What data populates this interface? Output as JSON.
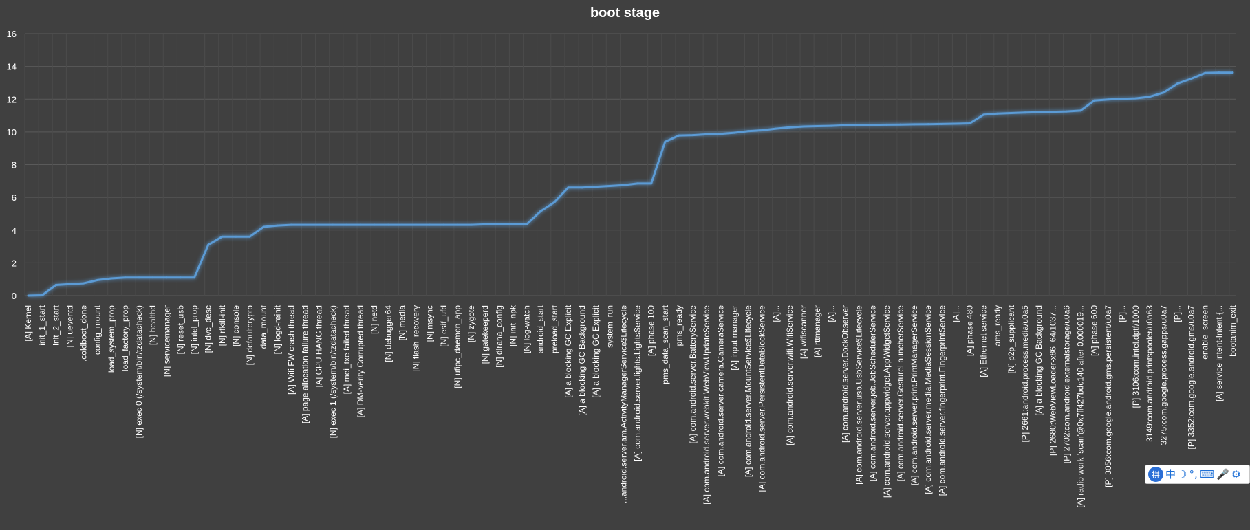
{
  "chart_data": {
    "type": "line",
    "title": "boot stage",
    "xlabel": "",
    "ylabel": "",
    "ylim": [
      0,
      16
    ],
    "yticks": [
      "0",
      "2",
      "4",
      "6",
      "8",
      "10",
      "12",
      "14",
      "16"
    ],
    "grid": true,
    "legend": "none",
    "colors": {
      "background": "#404040",
      "line": "#5b9bd5",
      "grid": "#5a5a5a",
      "text": "#ffffff"
    },
    "categories": [
      "[A] Kernel",
      "init_1_start",
      "init_2_start",
      "[N] ueventd",
      ".coldboot_done",
      "config_mount",
      "load_system_prop",
      "load_factory_prop",
      "[N] exec 0 (/system/bin/tzdatacheck)",
      "[N] healthd",
      "[N] servicemanager",
      "[N] reset_usb",
      "[N] intel_prop",
      "[N] dvc_desc",
      "[N] rfkill-init",
      "[N] console",
      "[N] defaultcrypto",
      "data_mount",
      "[N] logd-reinit",
      "[A] Wifi FW crash thread",
      "[A] page allocation failure thread",
      "[A] GPU HANG thread",
      "[N] exec 1 (/system/bin/tzdatacheck)",
      "[A] mei_txe failed thread",
      "[A] DM-verity Corrupted thread",
      "[N] netd",
      "[N] debugger64",
      "[N] media",
      "[N] flash_recovery",
      "[N] msync",
      "[N] esif_ufd",
      "[N] ufipc_daemon_app",
      "[N] zygote",
      "[N] gatekeeperd",
      "[N] dirana_config",
      "[N] init_npk",
      "[N] log-watch",
      "android_start",
      "preload_start",
      "[A] a blocking GC Explicit",
      "[A] a blocking GC Background",
      "[A] a blocking GC Explicit",
      "system_run",
      "...android.server.am.ActivityManagerService$Lifecycle",
      "[A] com.android.server.lights.LightsService",
      "[A] phase 100",
      "pms_data_scan_start",
      "pms_ready",
      "[A] com.android.server.BatteryService",
      "[A] com.android.server.webkit.WebViewUpdateService",
      "[A] com.android.server.camera.CameraService",
      "[A] input manager",
      "[A] com.android.server.MountService$Lifecycle",
      "[A] com.android.server.PersistentDataBlockService",
      "[A]...",
      "[A] com.android.server.wifi.WifiService",
      "[A] wifiscanner",
      "[A] rttmanager",
      "[A]...",
      "[A] com.android.server.DockObserver",
      "[A] com.android.server.usb.UsbService$Lifecycle",
      "[A] com.android.server.job.JobSchedulerService",
      "[A] com.android.server.appwidget.AppWidgetService",
      "[A] com.android.server.GestureLauncherService",
      "[A] com.android.server.print.PrintManagerService",
      "[A] com.android.server.media.MediaSessionService",
      "[A] com.android.server.fingerprint.FingerprintService",
      "[A]...",
      "[A] phase 480",
      "[A] Ethernet service",
      "ams_ready",
      "[N] p2p_supplicant",
      "[P] 2661:android.process.media/u0a5",
      "[A] a blocking GC Background",
      "[P] 2680:WebViewLoader-x86_64/1037...",
      "[P] 2702:com.android.externalstorage/u0a6",
      "[A] radio work 'scan'@0x7ff427bdc140 after 0.000019...",
      "[A] phase 600",
      "[P] 3056:com.google.android.gms.persistent/u0a7",
      "[P]...",
      "[P] 3106:com.intel.dptf/1000",
      "3149:com.android.printspooler/u0a63",
      "3275:com.google.process.gapps/u0a7",
      "[P]...",
      "[P] 3352:com.google.android.gms/u0a7",
      "enable_screen",
      "[A] service intent-Intent {...",
      "bootanim_exit"
    ],
    "series": [
      {
        "values": [
          0,
          0.02,
          0.65,
          0.7,
          0.75,
          0.95,
          1.05,
          1.1,
          1.1,
          1.1,
          1.1,
          1.1,
          1.1,
          3.1,
          3.6,
          3.6,
          3.6,
          4.2,
          4.28,
          4.32,
          4.32,
          4.32,
          4.32,
          4.32,
          4.32,
          4.32,
          4.32,
          4.32,
          4.32,
          4.32,
          4.32,
          4.32,
          4.32,
          4.35,
          4.35,
          4.35,
          4.35,
          5.15,
          5.7,
          6.6,
          6.6,
          6.65,
          6.7,
          6.75,
          6.85,
          6.85,
          9.4,
          9.78,
          9.8,
          9.85,
          9.88,
          9.95,
          10.05,
          10.1,
          10.2,
          10.28,
          10.33,
          10.35,
          10.37,
          10.4,
          10.42,
          10.43,
          10.44,
          10.45,
          10.46,
          10.47,
          10.48,
          10.5,
          10.52,
          11.05,
          11.12,
          11.15,
          11.18,
          11.2,
          11.23,
          11.25,
          11.3,
          11.92,
          11.98,
          12.02,
          12.05,
          12.15,
          12.4,
          12.95,
          13.25,
          13.6,
          13.62,
          13.62
        ]
      }
    ]
  },
  "ime_toolbar": {
    "logo": "拼",
    "buttons": [
      "中",
      "☽",
      "°,",
      "⌨",
      "🎤",
      "⚙"
    ]
  }
}
